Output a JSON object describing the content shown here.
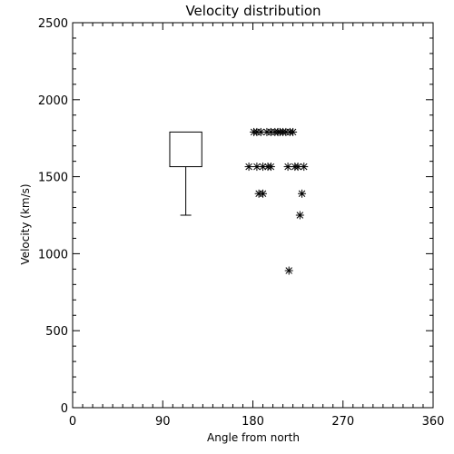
{
  "chart_data": {
    "type": "scatter",
    "title": "Velocity distribution",
    "xlabel": "Angle from north",
    "ylabel": "Velocity (km/s)",
    "xlim": [
      0,
      360
    ],
    "ylim": [
      0,
      2500
    ],
    "x_ticks": [
      0,
      90,
      180,
      270,
      360
    ],
    "y_ticks": [
      0,
      500,
      1000,
      1500,
      2000,
      2500
    ],
    "grid": false,
    "marker": "asterisk",
    "points": [
      {
        "x": 181,
        "y": 1790
      },
      {
        "x": 184,
        "y": 1790
      },
      {
        "x": 188,
        "y": 1790
      },
      {
        "x": 194,
        "y": 1790
      },
      {
        "x": 198,
        "y": 1790
      },
      {
        "x": 202,
        "y": 1790
      },
      {
        "x": 205,
        "y": 1790
      },
      {
        "x": 207,
        "y": 1790
      },
      {
        "x": 210,
        "y": 1790
      },
      {
        "x": 213,
        "y": 1790
      },
      {
        "x": 217,
        "y": 1790
      },
      {
        "x": 220,
        "y": 1790
      },
      {
        "x": 176,
        "y": 1565
      },
      {
        "x": 184,
        "y": 1565
      },
      {
        "x": 190,
        "y": 1565
      },
      {
        "x": 195,
        "y": 1565
      },
      {
        "x": 198,
        "y": 1565
      },
      {
        "x": 215,
        "y": 1565
      },
      {
        "x": 222,
        "y": 1565
      },
      {
        "x": 225,
        "y": 1565
      },
      {
        "x": 231,
        "y": 1565
      },
      {
        "x": 186,
        "y": 1390
      },
      {
        "x": 190,
        "y": 1390
      },
      {
        "x": 229,
        "y": 1390
      },
      {
        "x": 227,
        "y": 1250
      },
      {
        "x": 216,
        "y": 890
      }
    ],
    "boxplot": {
      "x_center": 113,
      "x_half_width": 16,
      "box_low": 1565,
      "box_high": 1790,
      "whisker_low": 1250
    }
  }
}
